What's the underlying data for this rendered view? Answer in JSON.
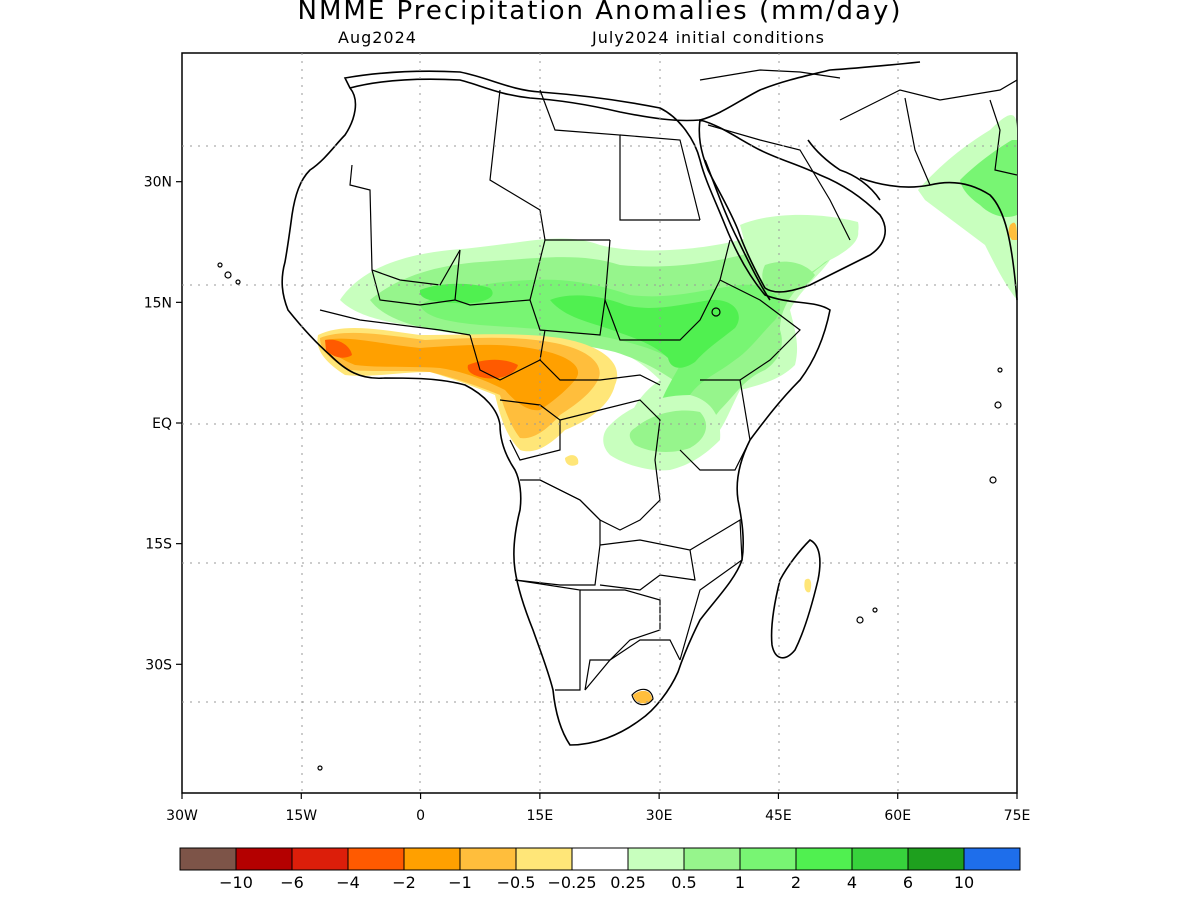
{
  "title": "NMME Precipitation Anomalies (mm/day)",
  "subtitle_left": "Aug2024",
  "subtitle_right": "July2024 initial conditions",
  "map": {
    "lon_range": [
      -30,
      75
    ],
    "lat_range": [
      -46,
      46
    ],
    "lon_ticks": [
      {
        "value": -30,
        "label": "30W"
      },
      {
        "value": -15,
        "label": "15W"
      },
      {
        "value": 0,
        "label": "0"
      },
      {
        "value": 15,
        "label": "15E"
      },
      {
        "value": 30,
        "label": "30E"
      },
      {
        "value": 45,
        "label": "45E"
      },
      {
        "value": 60,
        "label": "60E"
      },
      {
        "value": 75,
        "label": "75E"
      }
    ],
    "lat_ticks": [
      {
        "value": 30,
        "label": "30N"
      },
      {
        "value": 15,
        "label": "15N"
      },
      {
        "value": 0,
        "label": "EQ"
      },
      {
        "value": -15,
        "label": "15S"
      },
      {
        "value": -30,
        "label": "30S"
      }
    ],
    "gridlines": "dotted"
  },
  "colorbar": {
    "colors": [
      "#7d5448",
      "#b40000",
      "#dc1e0a",
      "#ff5a00",
      "#ffa000",
      "#ffbe3c",
      "#ffe678",
      "#ffffff",
      "#c8ffbe",
      "#96f58c",
      "#78f573",
      "#50f050",
      "#37d23c",
      "#1ea01e",
      "#1e6eeb"
    ],
    "labels": [
      "−10",
      "−6",
      "−4",
      "−2",
      "−1",
      "−0.5",
      "−0.25",
      "0.25",
      "0.5",
      "1",
      "2",
      "4",
      "6",
      "10"
    ]
  }
}
